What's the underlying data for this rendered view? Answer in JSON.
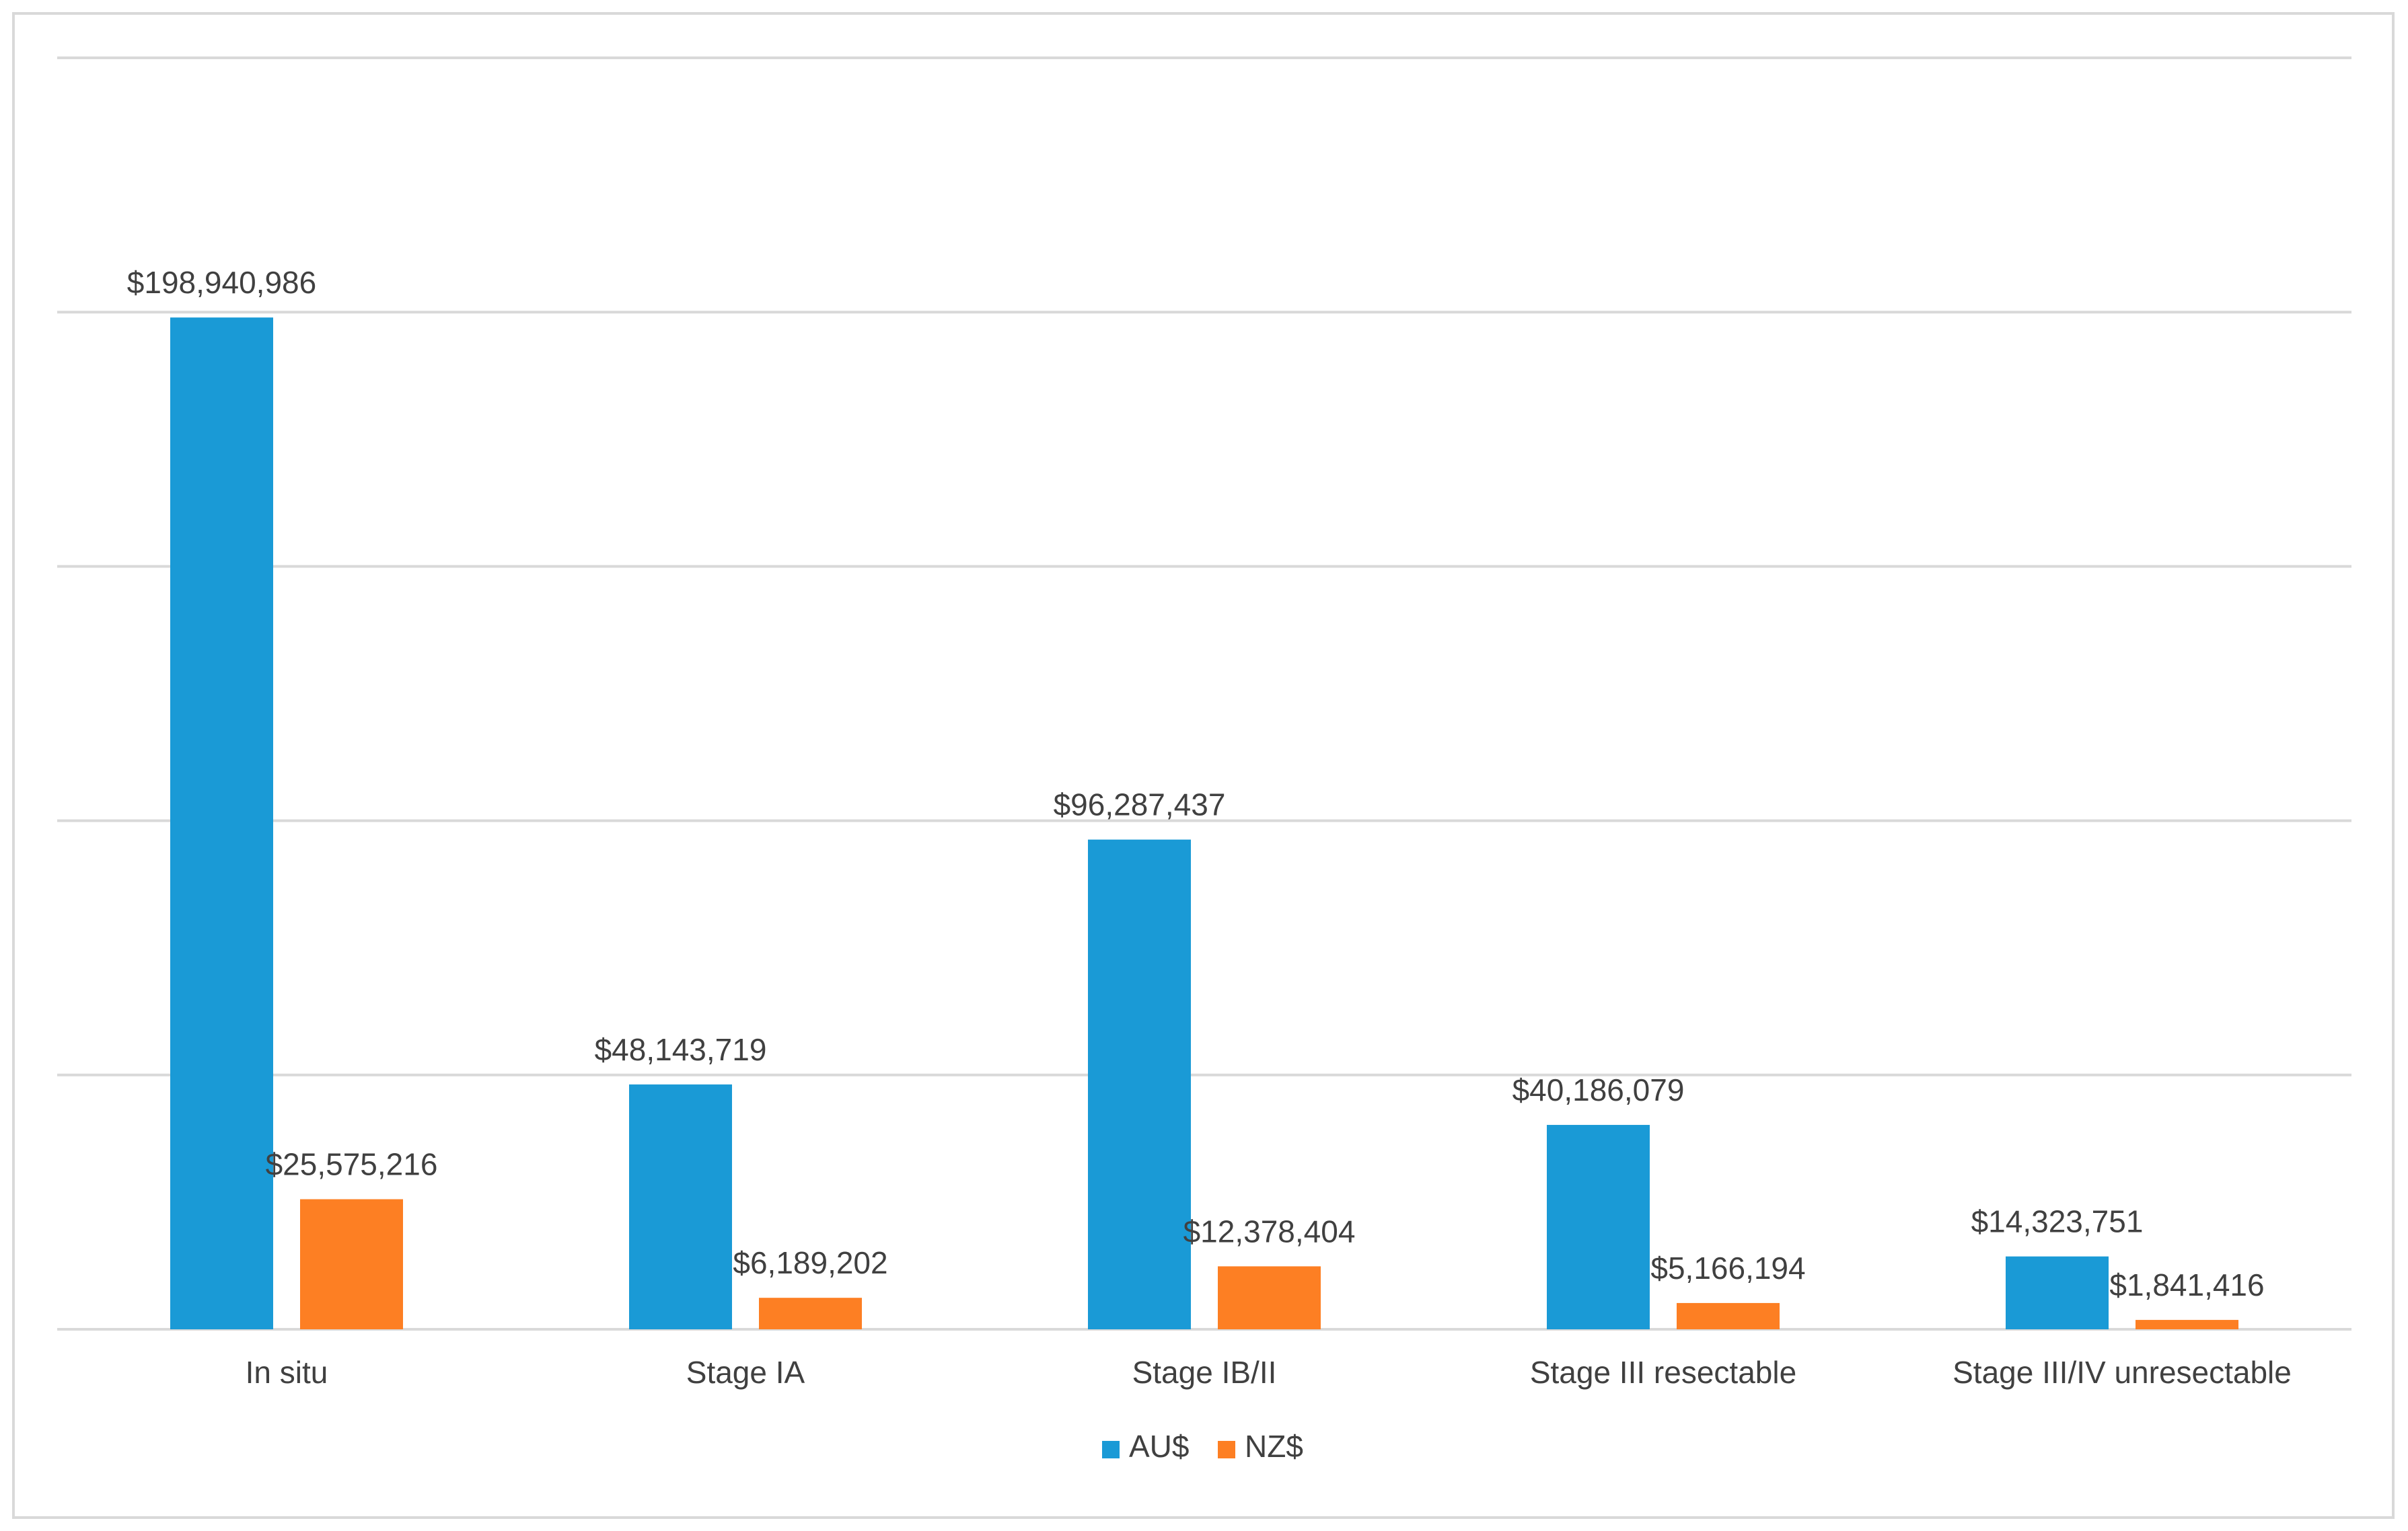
{
  "chart_data": {
    "type": "bar",
    "title": "",
    "xlabel": "",
    "ylabel": "",
    "ylim": [
      0,
      250000000
    ],
    "y_gridline_step": 50000000,
    "grid": true,
    "legend_position": "bottom",
    "categories": [
      "In situ",
      "Stage IA",
      "Stage IB/II",
      "Stage III resectable",
      "Stage III/IV unresectable"
    ],
    "series": [
      {
        "name": "AU$",
        "color": "#1a9ad6",
        "values": [
          198940986,
          48143719,
          96287437,
          40186079,
          14323751
        ],
        "labels": [
          "$198,940,986",
          "$48,143,719",
          "$96,287,437",
          "$40,186,079",
          "$14,323,751"
        ]
      },
      {
        "name": "NZ$",
        "color": "#fd7f23",
        "values": [
          25575216,
          6189202,
          12378404,
          5166194,
          1841416
        ],
        "labels": [
          "$25,575,216",
          "$6,189,202",
          "$12,378,404",
          "$5,166,194",
          "$1,841,416"
        ]
      }
    ]
  }
}
